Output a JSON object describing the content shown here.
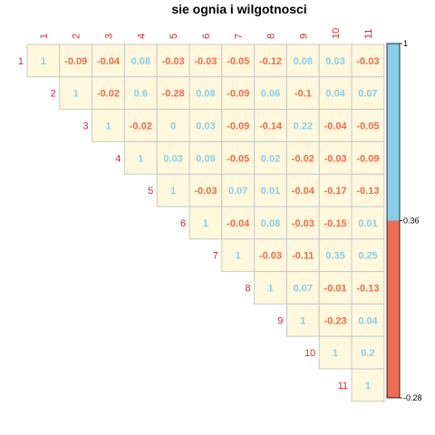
{
  "chart_data": {
    "type": "heatmap",
    "title": "sie ognia i wilgotnosci",
    "labels": [
      "1",
      "2",
      "3",
      "4",
      "5",
      "6",
      "7",
      "8",
      "9",
      "10",
      "11"
    ],
    "matrix": [
      [
        1,
        -0.09,
        -0.04,
        0.08,
        -0.03,
        -0.03,
        -0.05,
        -0.12,
        0.08,
        0.03,
        -0.03
      ],
      [
        null,
        1,
        -0.02,
        0.6,
        -0.28,
        0.08,
        -0.09,
        0.06,
        -0.1,
        0.04,
        0.07
      ],
      [
        null,
        null,
        1,
        -0.02,
        0,
        0.03,
        -0.09,
        -0.14,
        0.22,
        -0.04,
        -0.05
      ],
      [
        null,
        null,
        null,
        1,
        0.03,
        0.09,
        -0.05,
        0.02,
        -0.02,
        -0.03,
        -0.09
      ],
      [
        null,
        null,
        null,
        null,
        1,
        -0.03,
        0.07,
        0.01,
        -0.04,
        -0.17,
        -0.13
      ],
      [
        null,
        null,
        null,
        null,
        null,
        1,
        -0.04,
        0.08,
        -0.03,
        -0.15,
        0.01
      ],
      [
        null,
        null,
        null,
        null,
        null,
        null,
        1,
        -0.03,
        -0.11,
        0.35,
        0.25
      ],
      [
        null,
        null,
        null,
        null,
        null,
        null,
        null,
        1,
        0.07,
        -0.01,
        -0.13
      ],
      [
        null,
        null,
        null,
        null,
        null,
        null,
        null,
        null,
        1,
        -0.23,
        0.04
      ],
      [
        null,
        null,
        null,
        null,
        null,
        null,
        null,
        null,
        null,
        1,
        0.2
      ],
      [
        null,
        null,
        null,
        null,
        null,
        null,
        null,
        null,
        null,
        null,
        1
      ]
    ],
    "colorbar": {
      "ticks": [
        "1",
        "0.36",
        "-0.28"
      ],
      "max": 1,
      "threshold": 0.36,
      "min": -0.28,
      "positive_color": "#87ceeb",
      "negative_color": "#ee6a50"
    },
    "cell_fill": "#fff8dc",
    "label_color": "#d62728"
  }
}
